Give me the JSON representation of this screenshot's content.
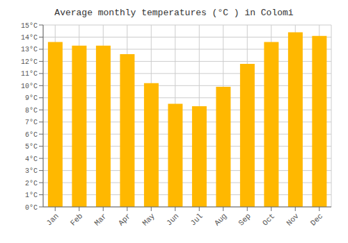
{
  "chart_data": {
    "type": "bar",
    "title": "Average monthly temperatures (°C ) in Colomi",
    "categories": [
      "Jan",
      "Feb",
      "Mar",
      "Apr",
      "May",
      "Jun",
      "Jul",
      "Aug",
      "Sep",
      "Oct",
      "Nov",
      "Dec"
    ],
    "values": [
      13.6,
      13.3,
      13.3,
      12.6,
      10.2,
      8.5,
      8.3,
      9.9,
      11.8,
      13.6,
      14.4,
      14.1
    ],
    "color": "#FFB800",
    "ylim": [
      0,
      15
    ],
    "yticks": [
      {
        "value": 0,
        "label": "0°C"
      },
      {
        "value": 1,
        "label": "1°C"
      },
      {
        "value": 2,
        "label": "2°C"
      },
      {
        "value": 3,
        "label": "3°C"
      },
      {
        "value": 4,
        "label": "4°C"
      },
      {
        "value": 5,
        "label": "5°C"
      },
      {
        "value": 6,
        "label": "6°C"
      },
      {
        "value": 7,
        "label": "7°C"
      },
      {
        "value": 8,
        "label": "8°C"
      },
      {
        "value": 9,
        "label": "9°C"
      },
      {
        "value": 10,
        "label": "10°C"
      },
      {
        "value": 11,
        "label": "11°C"
      },
      {
        "value": 12,
        "label": "12°C"
      },
      {
        "value": 13,
        "label": "13°C"
      },
      {
        "value": 14,
        "label": "14°C"
      },
      {
        "value": 15,
        "label": "15°C"
      }
    ],
    "grid": true
  }
}
